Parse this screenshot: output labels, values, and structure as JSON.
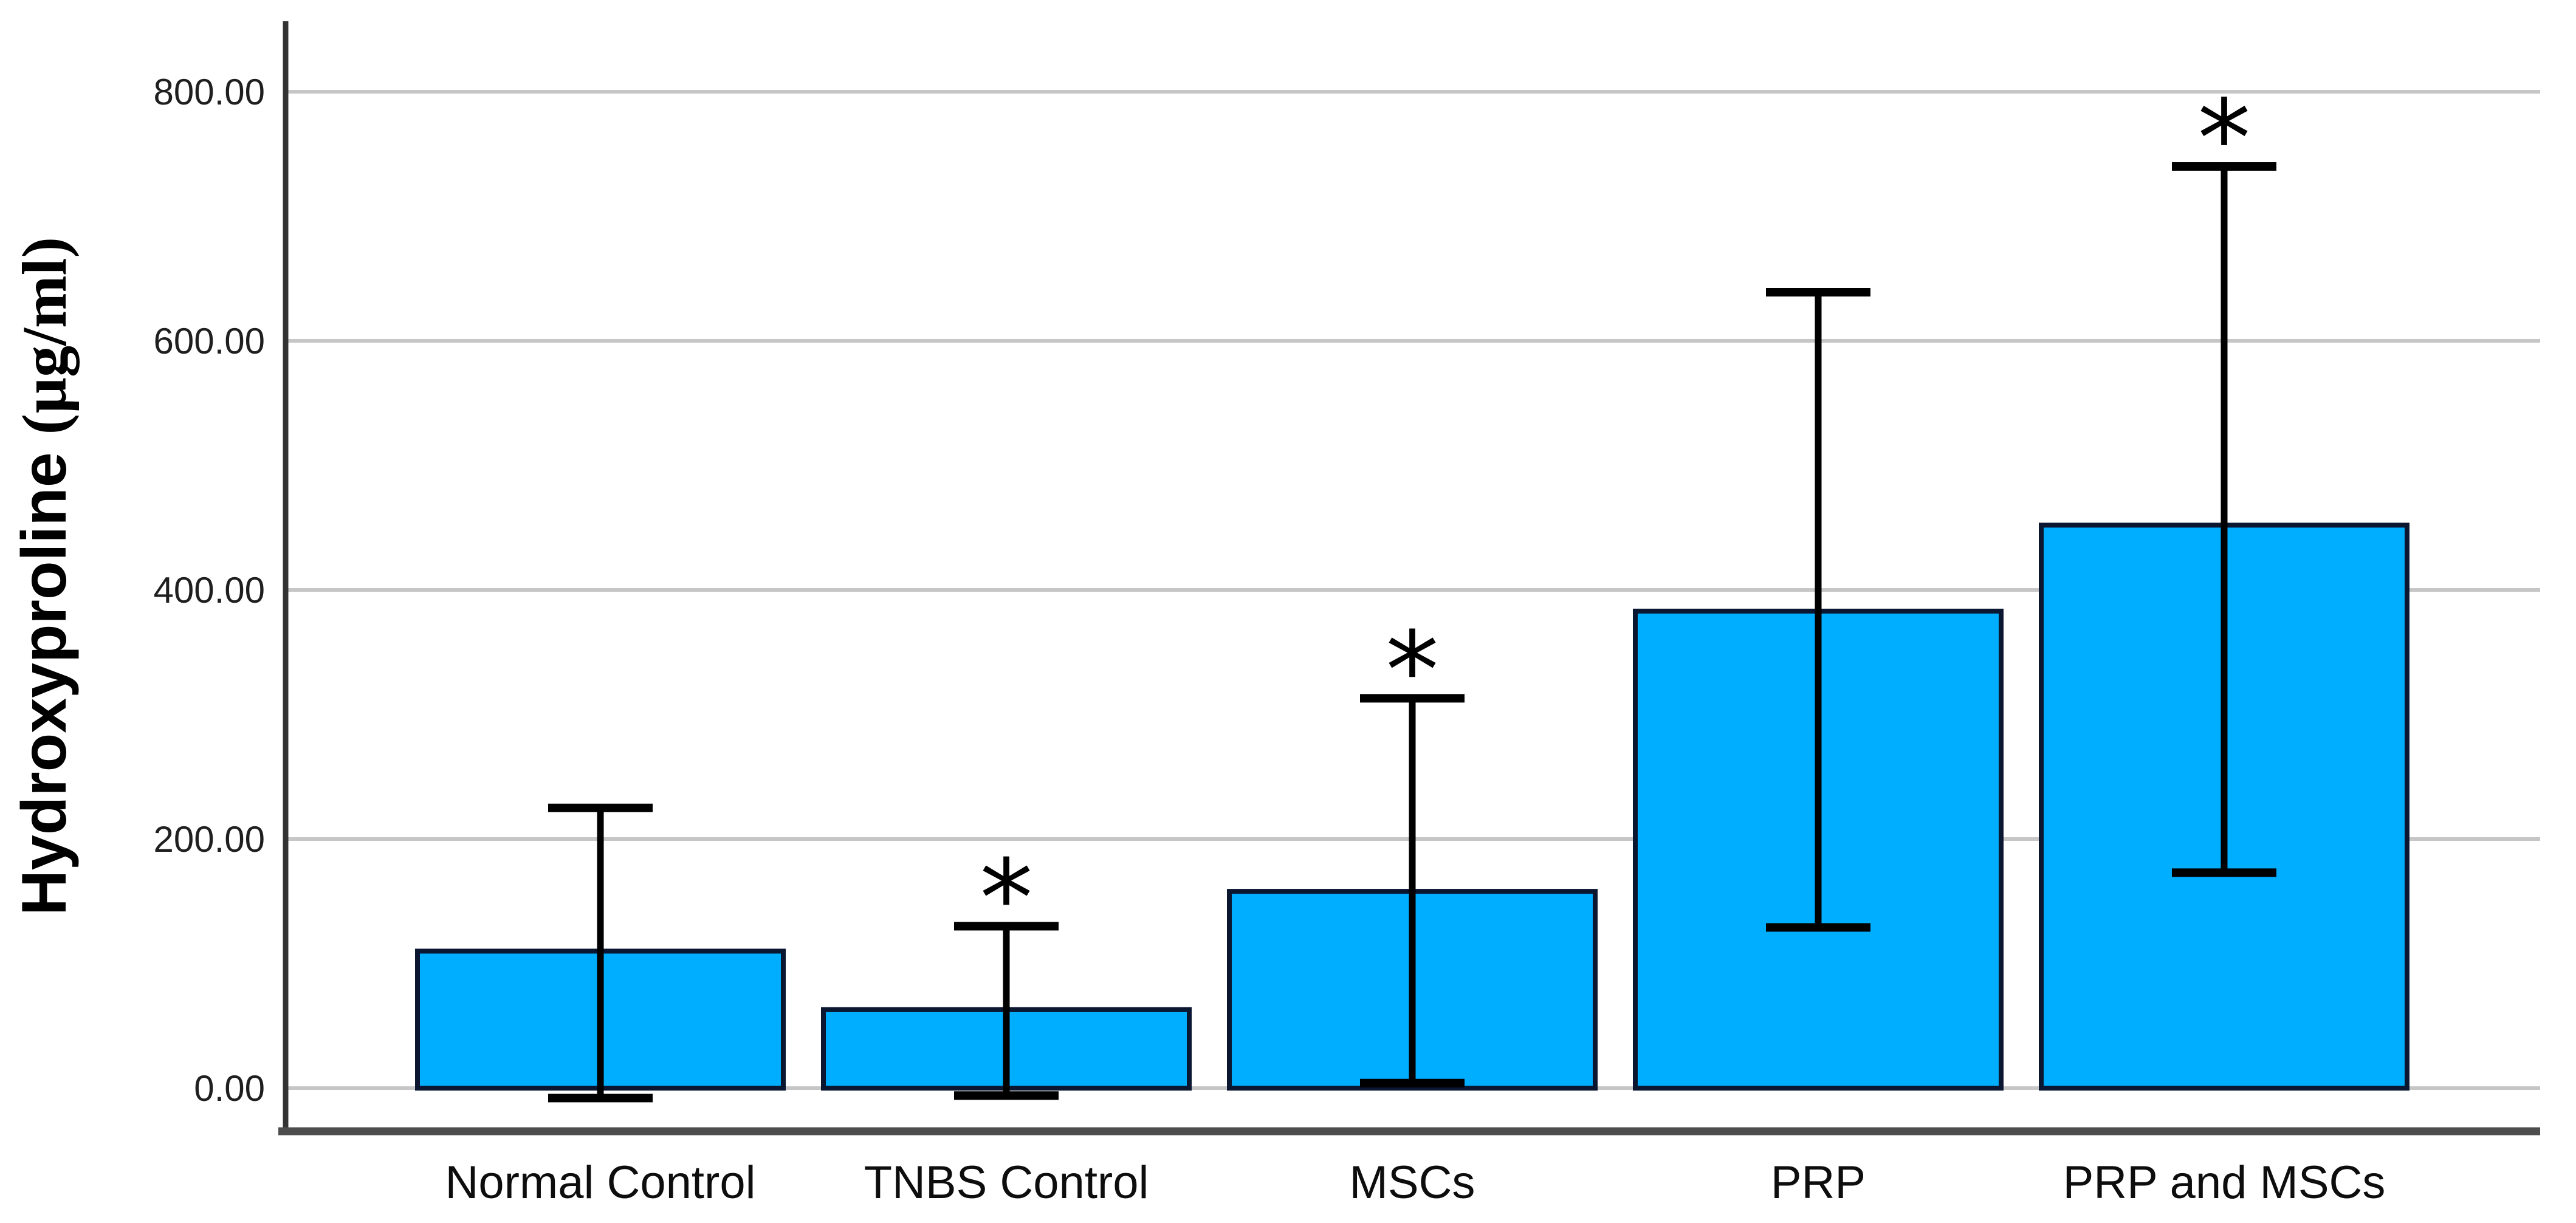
{
  "figure": {
    "ylabel_main": "Hydroxyproline ",
    "ylabel_unit": "(µg/ml)",
    "significance_marker": "*"
  },
  "chart_data": {
    "type": "bar",
    "title": "",
    "xlabel": "",
    "ylabel": "Hydroxyproline (µg/ml)",
    "categories": [
      "Normal Control",
      "TNBS Control",
      "MSCs",
      "PRP",
      "PRP and MSCs"
    ],
    "values": [
      110,
      63,
      158,
      383,
      452
    ],
    "error_bar_top": [
      225,
      130,
      313,
      639,
      740
    ],
    "error_bar_bottom": [
      -8,
      -6,
      4,
      129,
      173
    ],
    "significant": [
      false,
      true,
      true,
      false,
      true
    ],
    "ytick_labels": [
      "0.00",
      "200.00",
      "400.00",
      "600.00",
      "800.00"
    ],
    "ytick_values": [
      0,
      200,
      400,
      600,
      800
    ],
    "ylim": [
      0,
      800
    ],
    "grid": "horizontal-only",
    "legend": "none",
    "colors": {
      "bar_fill": "#00AEFF",
      "bar_border": "#0B1630",
      "error_bar": "#000000",
      "gridline": "#C6C6C6",
      "y_axis_line": "#333333",
      "bottom_frame": "#4D4D4D",
      "tick_label": "#1F1F1F",
      "category_label": "#0D0D0D"
    }
  }
}
